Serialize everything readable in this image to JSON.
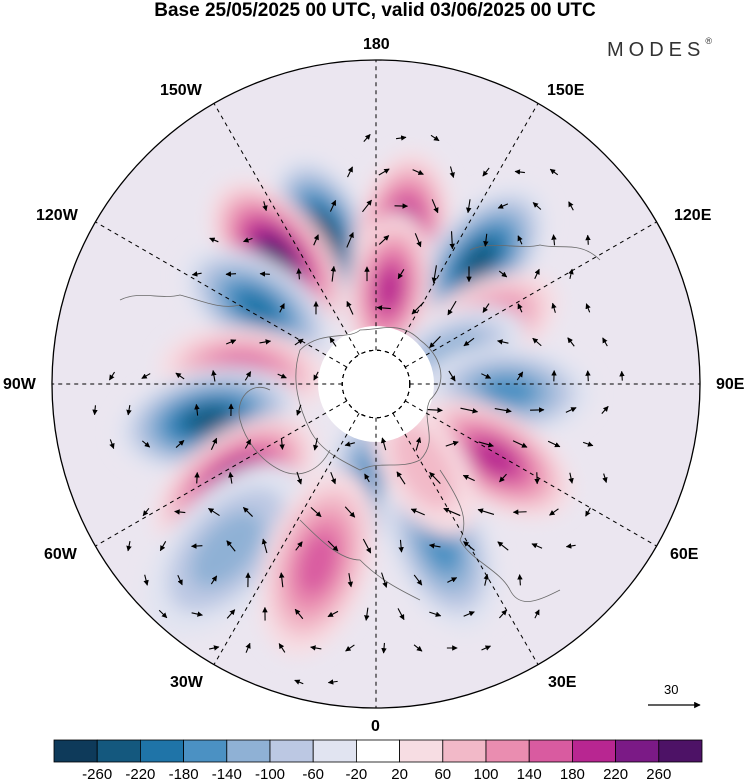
{
  "title": "Base 25/05/2025 00 UTC, valid 03/06/2025 00 UTC",
  "brand": "MODES",
  "brand_mark": "®",
  "longitude_labels": {
    "top": "180",
    "bottom": "0",
    "left": "90W",
    "right": "90E",
    "upper_left_1": "150W",
    "upper_left_2": "120W",
    "lower_left_1": "60W",
    "lower_left_2": "30W",
    "upper_right_1": "150E",
    "upper_right_2": "120E",
    "lower_right_1": "60E",
    "lower_right_2": "30E"
  },
  "vector_scale_label": "30",
  "colorbar": {
    "labels": [
      "-260",
      "-220",
      "-180",
      "-140",
      "-100",
      "-60",
      "-20",
      "20",
      "60",
      "100",
      "140",
      "180",
      "220",
      "260"
    ],
    "colors": [
      "#0e3a5a",
      "#14587e",
      "#1f74a8",
      "#4b91c3",
      "#8fb1d5",
      "#bcc8e3",
      "#e1e4f1",
      "#ffffff",
      "#f7dde3",
      "#f2b9c8",
      "#ea8db0",
      "#d95ba0",
      "#b82691",
      "#7b1a86",
      "#4d1266"
    ]
  },
  "map": {
    "projection": "north-polar-stereographic",
    "anomalies": [
      {
        "name": "low-150W",
        "lon": -160,
        "lat": 47,
        "value": -280
      },
      {
        "name": "high-150W-west",
        "lon": -142,
        "lat": 45,
        "value": 270
      },
      {
        "name": "high-165E",
        "lon": 170,
        "lat": 48,
        "value": 220
      },
      {
        "name": "low-150E",
        "lon": 140,
        "lat": 45,
        "value": -230
      },
      {
        "name": "high-170E-inner",
        "lon": 172,
        "lat": 62,
        "value": 190
      },
      {
        "name": "low-120W",
        "lon": -123,
        "lat": 50,
        "value": -170
      },
      {
        "name": "high-120E",
        "lon": 118,
        "lat": 55,
        "value": 150
      },
      {
        "name": "low-110E",
        "lon": 112,
        "lat": 65,
        "value": -120
      },
      {
        "name": "low-90E",
        "lon": 87,
        "lat": 52,
        "value": -150
      },
      {
        "name": "high-95W",
        "lon": -95,
        "lat": 52,
        "value": 130
      },
      {
        "name": "low-80W",
        "lon": -78,
        "lat": 42,
        "value": -230
      },
      {
        "name": "high-60W",
        "lon": -55,
        "lat": 42,
        "value": 210
      },
      {
        "name": "high-60E",
        "lon": 58,
        "lat": 50,
        "value": 170
      },
      {
        "name": "low-10W",
        "lon": -5,
        "lat": 62,
        "value": -140
      },
      {
        "name": "low-45W",
        "lon": -42,
        "lat": 30,
        "value": -110
      },
      {
        "name": "high-25W",
        "lon": -18,
        "lat": 38,
        "value": 140
      },
      {
        "name": "low-20E",
        "lon": 22,
        "lat": 42,
        "value": -150
      },
      {
        "name": "high-30E",
        "lon": 30,
        "lat": 62,
        "value": 70
      }
    ]
  }
}
